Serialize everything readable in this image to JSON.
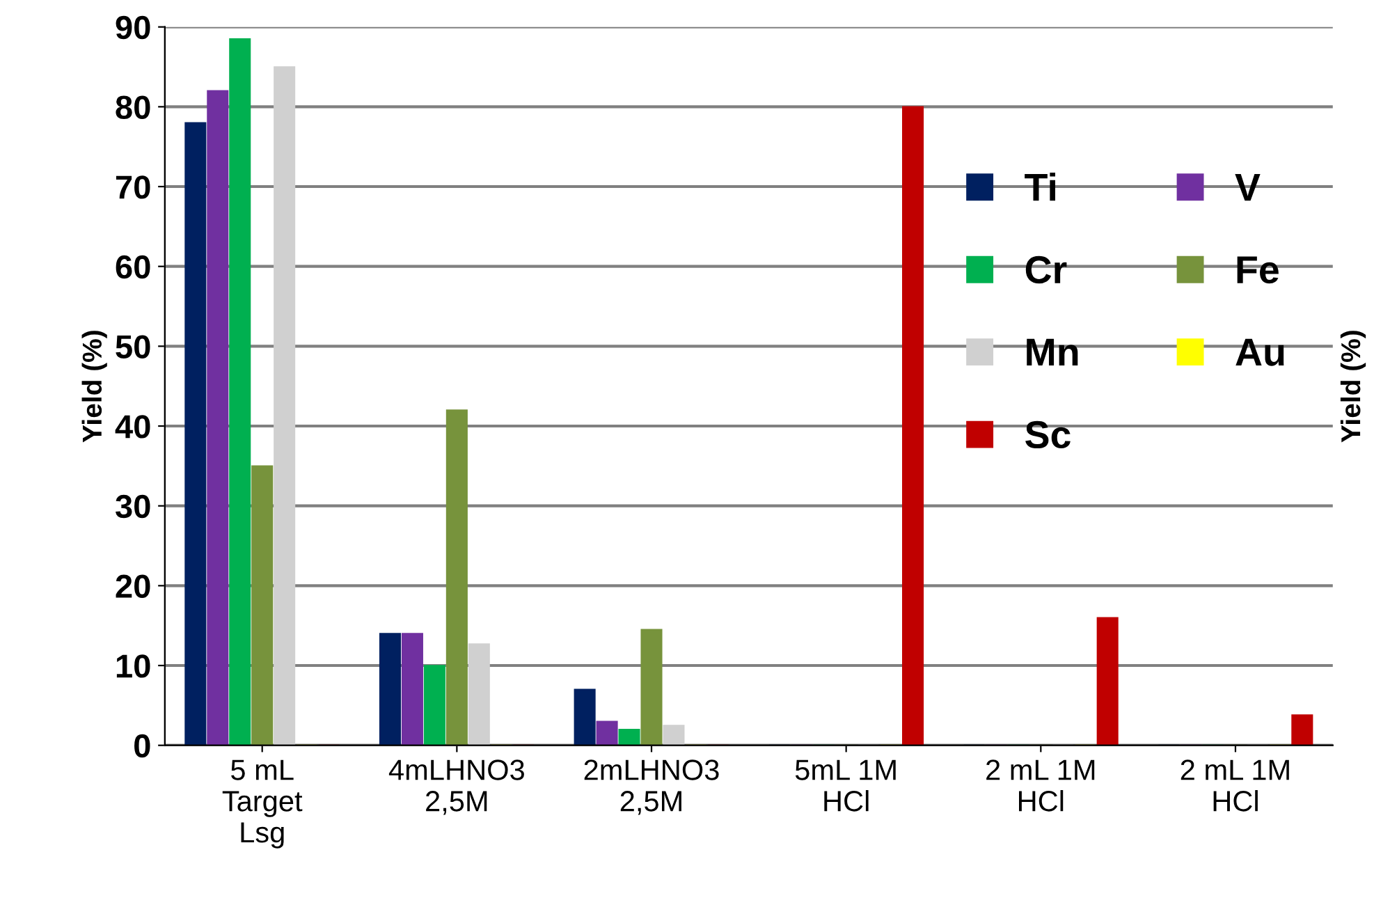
{
  "chart_data": {
    "type": "bar",
    "ylabel": "Yield (%)",
    "y2label": "Yield (%)",
    "categories": [
      "5 mL\nTarget\nLsg",
      "4mLHNO3\n2,5M",
      "2mLHNO3\n2,5M",
      "5mL 1M\nHCl",
      "2 mL 1M\nHCl",
      "2 mL 1M\nHCl"
    ],
    "series": [
      {
        "name": "Ti",
        "color": "#002060",
        "values": [
          78,
          14,
          7,
          0,
          0,
          0
        ]
      },
      {
        "name": "V",
        "color": "#7030a0",
        "values": [
          82,
          14,
          3,
          0,
          0,
          0
        ]
      },
      {
        "name": "Cr",
        "color": "#00b050",
        "values": [
          88.5,
          10,
          2,
          0,
          0,
          0
        ]
      },
      {
        "name": "Fe",
        "color": "#77933c",
        "values": [
          35,
          42,
          14.5,
          0,
          0,
          0
        ]
      },
      {
        "name": "Mn",
        "color": "#d0d0d0",
        "values": [
          85,
          12.7,
          2.5,
          0,
          0,
          0
        ]
      },
      {
        "name": "Au",
        "color": "#ffff00",
        "values": [
          0,
          0,
          0,
          0,
          0,
          0
        ]
      },
      {
        "name": "Sc",
        "color": "#c00000",
        "values": [
          0,
          0,
          0,
          80,
          16,
          3.8
        ]
      }
    ],
    "ylim": [
      0,
      90
    ],
    "yticks": [
      0,
      10,
      20,
      30,
      40,
      50,
      60,
      70,
      80,
      90
    ],
    "grid": "y",
    "legend": "right"
  }
}
